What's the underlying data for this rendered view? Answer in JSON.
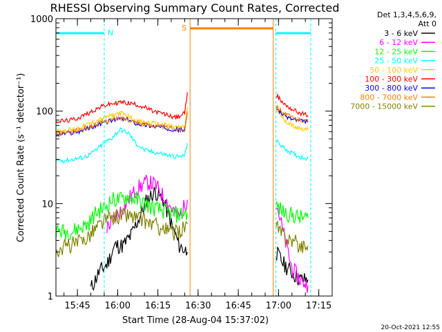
{
  "title": "RHESSI Observing Summary Count Rates, Corrected",
  "detectors": "Det 1,3,4,5,6,9,",
  "attenuator": "Att 0",
  "ylabel": "Corrected Count Rate (s⁻¹ detector⁻¹)",
  "xlabel": "Start Time (28-Aug-04 15:37:02)",
  "timestamp": "20-Oct-2021 12:55",
  "colors": {
    "night_marker": "#00ffff",
    "saa_marker": "#ff8000"
  },
  "chart_data": {
    "type": "line",
    "title": "RHESSI Observing Summary Count Rates, Corrected",
    "xlabel": "Start Time (28-Aug-04 15:37:02)",
    "ylabel": "Corrected Count Rate (s⁻¹ detector⁻¹)",
    "yscale": "log",
    "ylim": [
      1,
      1000
    ],
    "xlim": [
      "15:37",
      "17:20"
    ],
    "x_ticks": [
      "15:45",
      "16:00",
      "16:15",
      "16:30",
      "16:45",
      "17:00",
      "17:15"
    ],
    "y_ticks": [
      "1",
      "10",
      "100",
      "1000"
    ],
    "legend_position": "top-right",
    "markers": [
      {
        "label": "N",
        "color": "#00ffff",
        "start": "15:37",
        "end": "15:55"
      },
      {
        "label": "",
        "color": "#00ffff",
        "start": "16:59",
        "end": "17:12"
      },
      {
        "label": "S",
        "color": "#ff8000",
        "start": "16:27",
        "end": "16:58"
      }
    ],
    "gap": [
      "16:27",
      "16:58"
    ],
    "series": [
      {
        "name": "3 - 6 keV",
        "color": "#000000",
        "segments": [
          [
            [
              "15:50",
              1.2
            ],
            [
              "15:53",
              1.8
            ],
            [
              "15:56",
              2.2
            ],
            [
              "15:59",
              3.5
            ],
            [
              "16:02",
              3.5
            ],
            [
              "16:05",
              4.5
            ],
            [
              "16:08",
              7
            ],
            [
              "16:11",
              11
            ],
            [
              "16:14",
              13.5
            ],
            [
              "16:17",
              11
            ],
            [
              "16:20",
              6
            ],
            [
              "16:23",
              3.5
            ],
            [
              "16:26",
              3
            ]
          ],
          [
            [
              "16:59",
              3
            ],
            [
              "17:02",
              2.2
            ],
            [
              "17:05",
              1.8
            ],
            [
              "17:08",
              1.5
            ],
            [
              "17:11",
              1.5
            ]
          ]
        ]
      },
      {
        "name": "6 - 12 keV",
        "color": "#ff00ff",
        "segments": [
          [
            [
              "15:56",
              5.5
            ],
            [
              "15:59",
              7
            ],
            [
              "16:02",
              9
            ],
            [
              "16:05",
              12
            ],
            [
              "16:08",
              15
            ],
            [
              "16:11",
              17
            ],
            [
              "16:14",
              16
            ],
            [
              "16:17",
              12
            ],
            [
              "16:20",
              9
            ],
            [
              "16:23",
              7
            ],
            [
              "16:26",
              11
            ]
          ],
          [
            [
              "16:59",
              11
            ],
            [
              "17:02",
              4.5
            ],
            [
              "17:05",
              2
            ],
            [
              "17:08",
              1.5
            ],
            [
              "17:11",
              1.3
            ]
          ]
        ]
      },
      {
        "name": "12 - 25 keV",
        "color": "#00ff00",
        "segments": [
          [
            [
              "15:37",
              5
            ],
            [
              "15:40",
              5
            ],
            [
              "15:43",
              5
            ],
            [
              "15:46",
              5.5
            ],
            [
              "15:49",
              6
            ],
            [
              "15:52",
              8
            ],
            [
              "15:55",
              9
            ],
            [
              "15:58",
              11
            ],
            [
              "16:01",
              11
            ],
            [
              "16:04",
              12
            ],
            [
              "16:07",
              11
            ],
            [
              "16:10",
              10
            ],
            [
              "16:13",
              9
            ],
            [
              "16:16",
              8.5
            ],
            [
              "16:19",
              8
            ],
            [
              "16:22",
              7.5
            ],
            [
              "16:26",
              8
            ]
          ],
          [
            [
              "16:59",
              9.5
            ],
            [
              "17:02",
              8
            ],
            [
              "17:05",
              7.5
            ],
            [
              "17:08",
              7
            ],
            [
              "17:11",
              7
            ]
          ]
        ]
      },
      {
        "name": "25 - 50 keV",
        "color": "#00ffff",
        "segments": [
          [
            [
              "15:37",
              30
            ],
            [
              "15:40",
              29
            ],
            [
              "15:43",
              30
            ],
            [
              "15:46",
              31
            ],
            [
              "15:49",
              33
            ],
            [
              "15:52",
              38
            ],
            [
              "15:55",
              45
            ],
            [
              "15:58",
              52
            ],
            [
              "16:01",
              63
            ],
            [
              "16:04",
              58
            ],
            [
              "16:07",
              44
            ],
            [
              "16:10",
              38
            ],
            [
              "16:13",
              36
            ],
            [
              "16:16",
              35
            ],
            [
              "16:19",
              33
            ],
            [
              "16:22",
              32
            ],
            [
              "16:25",
              33
            ],
            [
              "16:26",
              45
            ]
          ],
          [
            [
              "16:59",
              48
            ],
            [
              "17:02",
              40
            ],
            [
              "17:05",
              35
            ],
            [
              "17:08",
              32
            ],
            [
              "17:11",
              31
            ]
          ]
        ]
      },
      {
        "name": "50 - 100 keV",
        "color": "#ffcc00",
        "segments": [
          [
            [
              "15:37",
              60
            ],
            [
              "15:40",
              62
            ],
            [
              "15:43",
              63
            ],
            [
              "15:46",
              67
            ],
            [
              "15:49",
              72
            ],
            [
              "15:52",
              78
            ],
            [
              "15:55",
              85
            ],
            [
              "15:58",
              90
            ],
            [
              "16:01",
              96
            ],
            [
              "16:04",
              88
            ],
            [
              "16:07",
              78
            ],
            [
              "16:10",
              75
            ],
            [
              "16:13",
              74
            ],
            [
              "16:16",
              72
            ],
            [
              "16:19",
              70
            ],
            [
              "16:22",
              67
            ],
            [
              "16:25",
              67
            ],
            [
              "16:26",
              110
            ]
          ],
          [
            [
              "16:59",
              105
            ],
            [
              "17:02",
              82
            ],
            [
              "17:05",
              70
            ],
            [
              "17:08",
              65
            ],
            [
              "17:11",
              63
            ]
          ]
        ]
      },
      {
        "name": "100 - 300 keV",
        "color": "#ff0000",
        "segments": [
          [
            [
              "15:37",
              78
            ],
            [
              "15:40",
              78
            ],
            [
              "15:43",
              80
            ],
            [
              "15:46",
              86
            ],
            [
              "15:49",
              95
            ],
            [
              "15:52",
              105
            ],
            [
              "15:55",
              115
            ],
            [
              "15:58",
              120
            ],
            [
              "16:01",
              125
            ],
            [
              "16:04",
              122
            ],
            [
              "16:07",
              118
            ],
            [
              "16:10",
              110
            ],
            [
              "16:13",
              100
            ],
            [
              "16:16",
              95
            ],
            [
              "16:19",
              90
            ],
            [
              "16:22",
              85
            ],
            [
              "16:25",
              95
            ],
            [
              "16:26",
              160
            ]
          ],
          [
            [
              "16:59",
              150
            ],
            [
              "17:02",
              120
            ],
            [
              "17:05",
              105
            ],
            [
              "17:08",
              95
            ],
            [
              "17:11",
              90
            ]
          ]
        ]
      },
      {
        "name": "300 - 800 keV",
        "color": "#0000ff",
        "segments": [
          [
            [
              "15:37",
              55
            ],
            [
              "15:40",
              57
            ],
            [
              "15:43",
              58
            ],
            [
              "15:46",
              61
            ],
            [
              "15:49",
              65
            ],
            [
              "15:52",
              70
            ],
            [
              "15:55",
              75
            ],
            [
              "15:58",
              80
            ],
            [
              "16:01",
              83
            ],
            [
              "16:04",
              80
            ],
            [
              "16:07",
              74
            ],
            [
              "16:10",
              71
            ],
            [
              "16:13",
              69
            ],
            [
              "16:16",
              67
            ],
            [
              "16:19",
              65
            ],
            [
              "16:22",
              63
            ],
            [
              "16:25",
              62
            ],
            [
              "16:26",
              95
            ]
          ],
          [
            [
              "16:59",
              110
            ],
            [
              "17:02",
              90
            ],
            [
              "17:05",
              82
            ],
            [
              "17:08",
              78
            ],
            [
              "17:11",
              76
            ]
          ]
        ]
      },
      {
        "name": "800 - 7000 keV",
        "color": "#ff8000",
        "segments": [
          [
            [
              "15:37",
              57
            ],
            [
              "15:40",
              58
            ],
            [
              "15:43",
              60
            ],
            [
              "15:46",
              63
            ],
            [
              "15:49",
              67
            ],
            [
              "15:52",
              72
            ],
            [
              "15:55",
              77
            ],
            [
              "15:58",
              81
            ],
            [
              "16:01",
              84
            ],
            [
              "16:04",
              81
            ],
            [
              "16:07",
              76
            ],
            [
              "16:10",
              72
            ],
            [
              "16:13",
              70
            ],
            [
              "16:16",
              68
            ],
            [
              "16:19",
              66
            ],
            [
              "16:22",
              64
            ],
            [
              "16:25",
              63
            ],
            [
              "16:26",
              100
            ]
          ],
          [
            [
              "16:59",
              115
            ],
            [
              "17:02",
              95
            ],
            [
              "17:05",
              85
            ],
            [
              "17:08",
              80
            ],
            [
              "17:11",
              78
            ]
          ]
        ]
      },
      {
        "name": "7000 - 15000 keV",
        "color": "#808000",
        "segments": [
          [
            [
              "15:37",
              3.2
            ],
            [
              "15:40",
              3.4
            ],
            [
              "15:43",
              3.6
            ],
            [
              "15:46",
              3.8
            ],
            [
              "15:49",
              4.5
            ],
            [
              "15:52",
              5.5
            ],
            [
              "15:55",
              6.5
            ],
            [
              "15:58",
              7
            ],
            [
              "16:01",
              7.5
            ],
            [
              "16:04",
              7.5
            ],
            [
              "16:07",
              7
            ],
            [
              "16:10",
              6.5
            ],
            [
              "16:13",
              6
            ],
            [
              "16:16",
              5.5
            ],
            [
              "16:19",
              5
            ],
            [
              "16:22",
              4.8
            ],
            [
              "16:26",
              6
            ]
          ],
          [
            [
              "16:59",
              5.5
            ],
            [
              "17:02",
              4.5
            ],
            [
              "17:05",
              4
            ],
            [
              "17:08",
              3.5
            ],
            [
              "17:11",
              3.5
            ]
          ]
        ]
      }
    ]
  }
}
